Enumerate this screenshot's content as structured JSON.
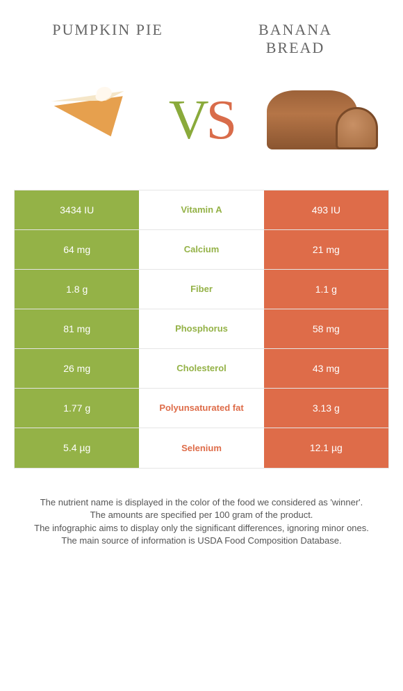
{
  "titles": {
    "left": "Pumpkin Pie",
    "right_line1": "Banana",
    "right_line2": "Bread"
  },
  "vs": {
    "v": "V",
    "s": "S"
  },
  "colors": {
    "left": "#94b247",
    "right": "#de6c49",
    "left_text": "#94b247",
    "right_text": "#de6c49"
  },
  "rows": [
    {
      "nutrient": "Vitamin A",
      "left": "3434 IU",
      "right": "493 IU",
      "winner": "left"
    },
    {
      "nutrient": "Calcium",
      "left": "64 mg",
      "right": "21 mg",
      "winner": "left"
    },
    {
      "nutrient": "Fiber",
      "left": "1.8 g",
      "right": "1.1 g",
      "winner": "left"
    },
    {
      "nutrient": "Phosphorus",
      "left": "81 mg",
      "right": "58 mg",
      "winner": "left"
    },
    {
      "nutrient": "Cholesterol",
      "left": "26 mg",
      "right": "43 mg",
      "winner": "left"
    },
    {
      "nutrient": "Polyunsaturated fat",
      "left": "1.77 g",
      "right": "3.13 g",
      "winner": "right"
    },
    {
      "nutrient": "Selenium",
      "left": "5.4 µg",
      "right": "12.1 µg",
      "winner": "right"
    }
  ],
  "footnotes": [
    "The nutrient name is displayed in the color of the food we considered as 'winner'.",
    "The amounts are specified per 100 gram of the product.",
    "The infographic aims to display only the significant differences, ignoring minor ones.",
    "The main source of information is USDA Food Composition Database."
  ]
}
